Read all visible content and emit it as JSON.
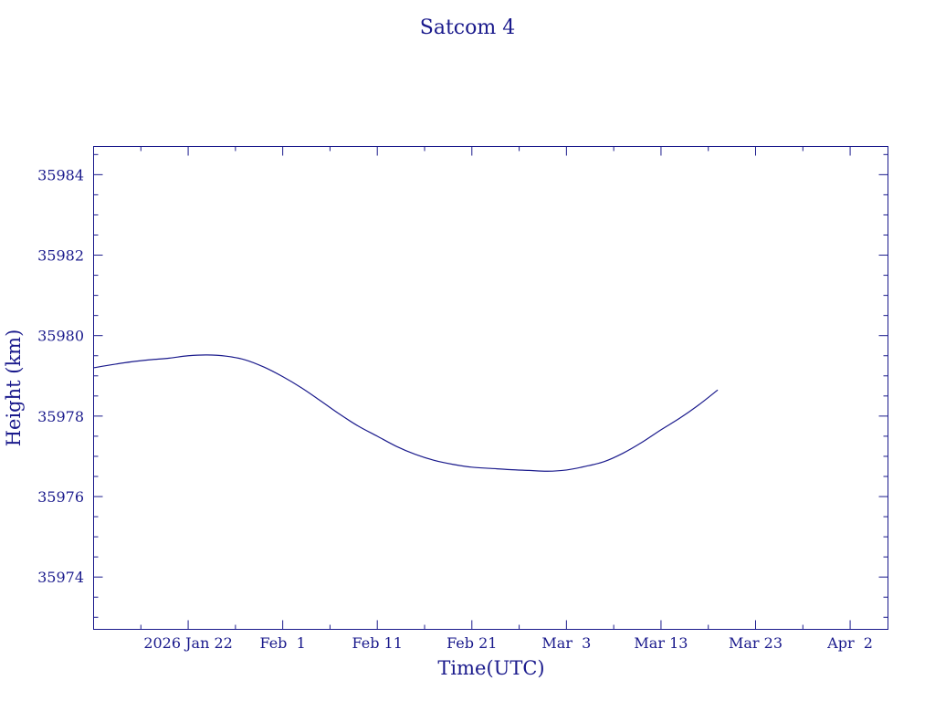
{
  "chart_data": {
    "type": "line",
    "title": "Satcom 4",
    "xlabel": "Time(UTC)",
    "ylabel": "Height (km)",
    "x_type": "date",
    "xlim": [
      "2026-01-12",
      "2026-04-06"
    ],
    "ylim": [
      35972.7,
      35984.7
    ],
    "x_ticks": [
      {
        "date": "2026-01-22",
        "label": "2026 Jan 22"
      },
      {
        "date": "2026-02-01",
        "label": "Feb  1"
      },
      {
        "date": "2026-02-11",
        "label": "Feb 11"
      },
      {
        "date": "2026-02-21",
        "label": "Feb 21"
      },
      {
        "date": "2026-03-03",
        "label": "Mar  3"
      },
      {
        "date": "2026-03-13",
        "label": "Mar 13"
      },
      {
        "date": "2026-03-23",
        "label": "Mar 23"
      },
      {
        "date": "2026-04-02",
        "label": "Apr  2"
      }
    ],
    "x_minor_ticks": [
      "2026-01-17",
      "2026-01-27",
      "2026-02-06",
      "2026-02-16",
      "2026-02-26",
      "2026-03-08",
      "2026-03-18",
      "2026-03-28"
    ],
    "y_ticks": [
      35974,
      35976,
      35978,
      35980,
      35982,
      35984
    ],
    "y_minor_step": 0.5,
    "grid": false,
    "series": [
      {
        "color": "#1a1a8c",
        "x": [
          "2026-01-12",
          "2026-01-14",
          "2026-01-16",
          "2026-01-18",
          "2026-01-20",
          "2026-01-22",
          "2026-01-24",
          "2026-01-26",
          "2026-01-28",
          "2026-01-30",
          "2026-02-01",
          "2026-02-03",
          "2026-02-05",
          "2026-02-07",
          "2026-02-09",
          "2026-02-11",
          "2026-02-13",
          "2026-02-15",
          "2026-02-17",
          "2026-02-19",
          "2026-02-21",
          "2026-02-23",
          "2026-02-25",
          "2026-02-27",
          "2026-03-01",
          "2026-03-03",
          "2026-03-05",
          "2026-03-07",
          "2026-03-09",
          "2026-03-11",
          "2026-03-13",
          "2026-03-15",
          "2026-03-17",
          "2026-03-19"
        ],
        "y": [
          35979.2,
          35979.28,
          35979.35,
          35979.4,
          35979.44,
          35979.5,
          35979.52,
          35979.49,
          35979.4,
          35979.22,
          35978.98,
          35978.7,
          35978.38,
          35978.05,
          35977.75,
          35977.5,
          35977.25,
          35977.05,
          35976.9,
          35976.8,
          35976.73,
          35976.7,
          35976.67,
          35976.65,
          35976.63,
          35976.66,
          35976.75,
          35976.87,
          35977.08,
          35977.35,
          35977.66,
          35977.95,
          35978.28,
          35978.65
        ]
      }
    ]
  }
}
